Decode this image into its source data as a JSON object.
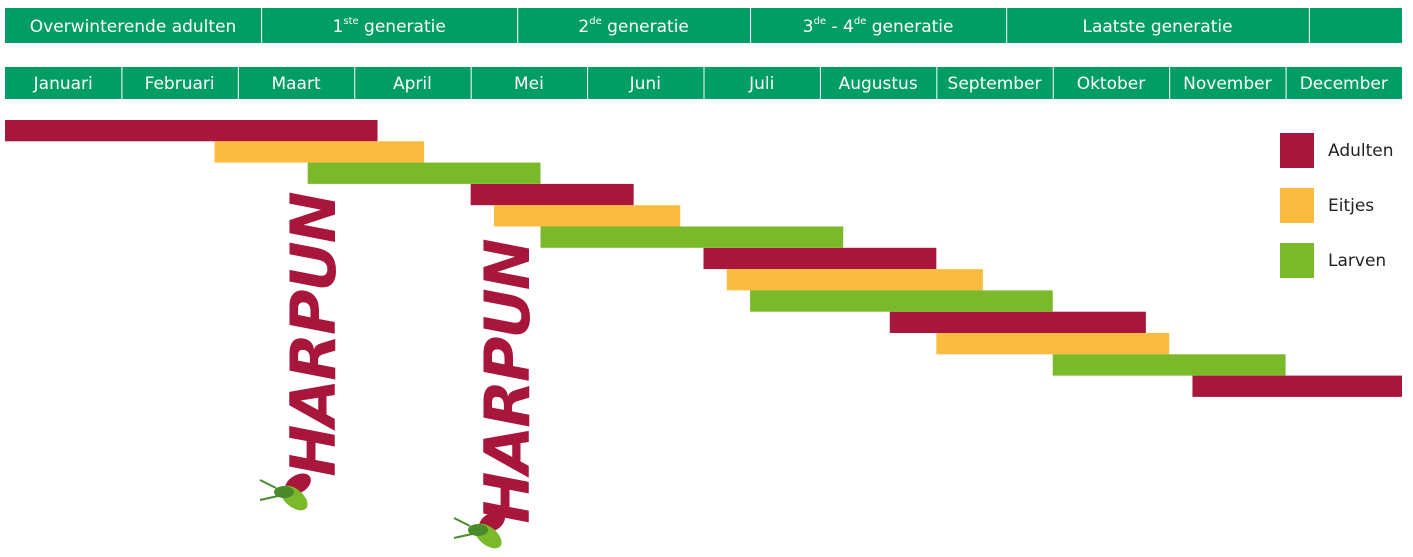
{
  "chart_data": {
    "type": "gantt",
    "generations": [
      {
        "label_parts": [
          "Overwinterende adulten"
        ],
        "start": 0,
        "end": 2.2
      },
      {
        "label_parts": [
          "1",
          "ste",
          " generatie"
        ],
        "start": 2.2,
        "end": 4.4
      },
      {
        "label_parts": [
          "2",
          "de",
          " generatie"
        ],
        "start": 4.4,
        "end": 6.4
      },
      {
        "label_parts": [
          "3",
          "de",
          " - 4",
          "de",
          " generatie"
        ],
        "start": 6.4,
        "end": 8.6
      },
      {
        "label_parts": [
          "Laatste generatie"
        ],
        "start": 8.6,
        "end": 11.2
      },
      {
        "label_parts": null,
        "start": 11.2,
        "end": 12
      }
    ],
    "categories": [
      "Januari",
      "Februari",
      "Maart",
      "April",
      "Mei",
      "Juni",
      "Juli",
      "Augustus",
      "September",
      "Oktober",
      "November",
      "December"
    ],
    "xlim": [
      0,
      12
    ],
    "header_color": "#009e64",
    "series": [
      {
        "name": "Adulten",
        "color": "#a8173b",
        "ranges": [
          [
            0,
            3.2
          ],
          [
            4.0,
            5.4
          ],
          [
            6.0,
            8.0
          ],
          [
            7.6,
            9.8
          ],
          [
            10.2,
            12
          ]
        ]
      },
      {
        "name": "Eitjes",
        "color": "#fbbb41",
        "ranges": [
          [
            1.8,
            3.6
          ],
          [
            4.2,
            5.8
          ],
          [
            6.2,
            8.4
          ],
          [
            8.0,
            10.0
          ]
        ]
      },
      {
        "name": "Larven",
        "color": "#7ab929",
        "ranges": [
          [
            2.6,
            4.6
          ],
          [
            4.6,
            7.2
          ],
          [
            6.4,
            9.0
          ],
          [
            9.0,
            11.0
          ]
        ]
      }
    ],
    "logo_text": "HARPUN"
  }
}
